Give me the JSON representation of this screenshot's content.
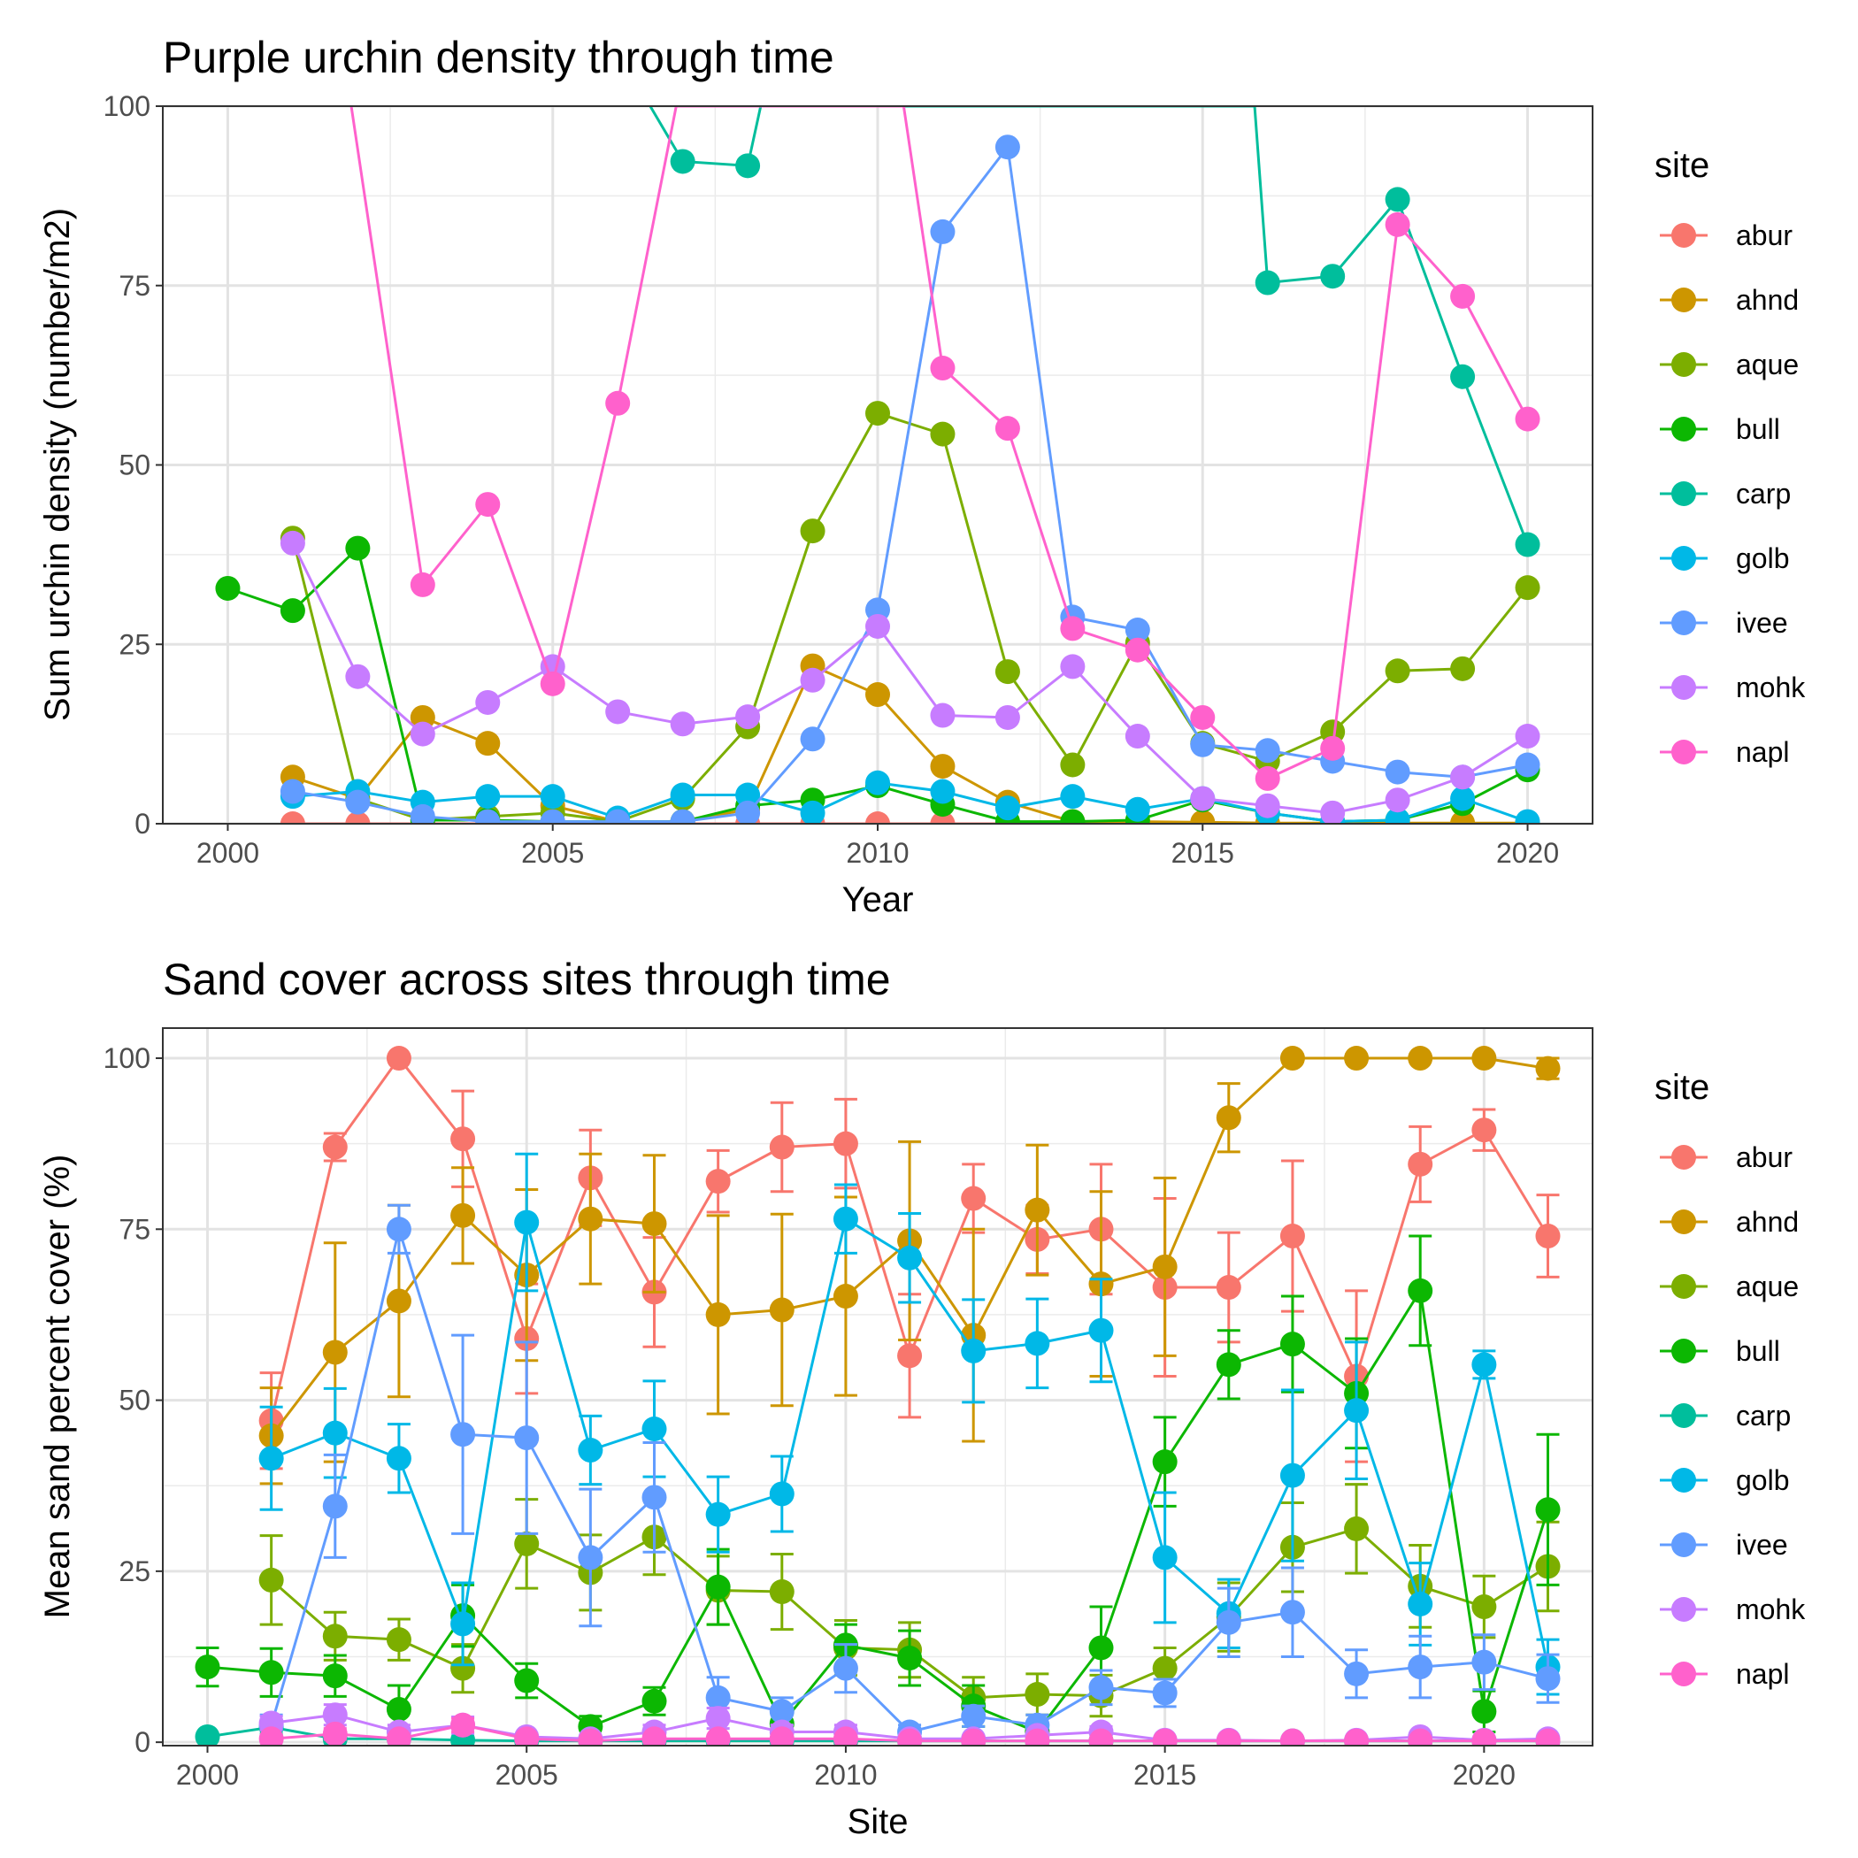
{
  "colors": {
    "abur": "#F8766D",
    "ahnd": "#CD9600",
    "aque": "#7CAE00",
    "bull": "#0CB702",
    "carp": "#00BE9C",
    "golb": "#00B8E7",
    "ivee": "#619CFF",
    "mohk": "#C77CFF",
    "napl": "#FF61CC"
  },
  "chart_data": [
    {
      "type": "line",
      "title": "Purple urchin density through time",
      "xlabel": "Year",
      "ylabel": "Sum urchin density (number/m2)",
      "xlim": [
        1999,
        2021
      ],
      "ylim": [
        0,
        100
      ],
      "x_ticks": [
        2000,
        2005,
        2010,
        2015,
        2020
      ],
      "y_ticks": [
        0,
        25,
        50,
        75,
        100
      ],
      "legend_title": "site",
      "legend": [
        "abur",
        "ahnd",
        "aque",
        "bull",
        "carp",
        "golb",
        "ivee",
        "mohk",
        "napl"
      ],
      "legend_position": "right",
      "grid": true,
      "series": [
        {
          "name": "abur",
          "x": [
            2001,
            2002,
            2003,
            2004,
            2005,
            2006,
            2007,
            2008,
            2009,
            2010,
            2011,
            2012,
            2013,
            2014,
            2015,
            2016,
            2017,
            2018,
            2019,
            2020
          ],
          "y": [
            0,
            0,
            0,
            0,
            0,
            0,
            0,
            0,
            0,
            0,
            0,
            0,
            0,
            0,
            0,
            0,
            0,
            0,
            0,
            0
          ]
        },
        {
          "name": "ahnd",
          "x": [
            2001,
            2002,
            2003,
            2004,
            2005,
            2006,
            2007,
            2008,
            2009,
            2010,
            2011,
            2012,
            2013,
            2014,
            2015,
            2016,
            2017,
            2018,
            2019,
            2020
          ],
          "y": [
            6.5,
            3.5,
            14.8,
            11.2,
            2.5,
            0.3,
            0.3,
            2,
            22,
            18,
            8,
            3,
            0.3,
            0.3,
            0.2,
            0.1,
            0.1,
            0.1,
            0.1,
            0.1
          ]
        },
        {
          "name": "aque",
          "x": [
            2001,
            2002,
            2003,
            2004,
            2005,
            2006,
            2007,
            2008,
            2009,
            2010,
            2011,
            2012,
            2013,
            2014,
            2015,
            2016,
            2017,
            2018,
            2019,
            2020
          ],
          "y": [
            39.8,
            3.5,
            0.5,
            1,
            1.5,
            0.3,
            3.5,
            13.5,
            40.8,
            57.2,
            54.3,
            21.2,
            8.2,
            25.2,
            11.2,
            8.7,
            12.8,
            21.3,
            21.6,
            32.9
          ]
        },
        {
          "name": "bull",
          "x": [
            2000,
            2001,
            2002,
            2003,
            2004,
            2005,
            2006,
            2007,
            2008,
            2009,
            2010,
            2011,
            2012,
            2013,
            2014,
            2015,
            2016,
            2017,
            2018,
            2019,
            2020
          ],
          "y": [
            32.8,
            29.7,
            38.4,
            0.5,
            0.5,
            0.3,
            0.3,
            0.3,
            2.5,
            3.3,
            5.3,
            2.7,
            0.3,
            0.3,
            0.5,
            3.3,
            1.5,
            0.3,
            0.5,
            2.8,
            7.5
          ]
        },
        {
          "name": "carp",
          "x": [
            2006.5,
            2007,
            2008,
            2008.2,
            2015.8,
            2016,
            2017,
            2018,
            2019,
            2020
          ],
          "y": [
            100,
            92.3,
            91.7,
            100,
            100,
            75.4,
            76.3,
            87,
            62.3,
            38.9
          ]
        },
        {
          "name": "golb",
          "x": [
            2001,
            2002,
            2003,
            2004,
            2005,
            2006,
            2007,
            2008,
            2009,
            2010,
            2011,
            2012,
            2013,
            2014,
            2015,
            2016,
            2017,
            2018,
            2019,
            2020
          ],
          "y": [
            3.8,
            4.5,
            3,
            3.8,
            3.8,
            0.8,
            4,
            4,
            1.5,
            5.7,
            4.5,
            2.2,
            3.8,
            2,
            3.5,
            1.5,
            0.3,
            0.5,
            3.5,
            0.3
          ]
        },
        {
          "name": "ivee",
          "x": [
            2001,
            2002,
            2003,
            2004,
            2005,
            2006,
            2007,
            2008,
            2009,
            2010,
            2011,
            2012,
            2013,
            2014,
            2015,
            2016,
            2017,
            2018,
            2019,
            2020
          ],
          "y": [
            4.5,
            3,
            1,
            0.3,
            0.3,
            0.3,
            0.3,
            1.5,
            11.8,
            29.8,
            82.5,
            94.3,
            28.8,
            27,
            11,
            10.2,
            8.7,
            7.2,
            6.5,
            8.2
          ]
        },
        {
          "name": "mohk",
          "x": [
            2001,
            2002,
            2003,
            2004,
            2005,
            2006,
            2007,
            2008,
            2009,
            2010,
            2011,
            2012,
            2013,
            2014,
            2015,
            2016,
            2017,
            2018,
            2019,
            2020
          ],
          "y": [
            39.1,
            20.5,
            12.5,
            16.9,
            21.9,
            15.6,
            13.9,
            14.9,
            20,
            27.5,
            15.1,
            14.8,
            21.9,
            12.2,
            3.5,
            2.5,
            1.5,
            3.3,
            6.5,
            12.2
          ]
        },
        {
          "name": "napl",
          "x": [
            2001.9,
            2003,
            2004,
            2005,
            2006,
            2006.9,
            2010.4,
            2011,
            2012,
            2013,
            2014,
            2015,
            2016,
            2017,
            2018,
            2019,
            2020
          ],
          "y": [
            100,
            33.3,
            44.5,
            19.5,
            58.6,
            100,
            100,
            63.5,
            55.1,
            27.2,
            24.2,
            14.8,
            6.3,
            10.5,
            83.5,
            73.5,
            56.4
          ]
        }
      ]
    },
    {
      "type": "line",
      "title": "Sand cover across sites through time",
      "xlabel": "Site",
      "ylabel": "Mean sand percent cover (%)",
      "xlim": [
        1999.3,
        2021.7
      ],
      "ylim": [
        0,
        100
      ],
      "x_ticks": [
        2000,
        2005,
        2010,
        2015,
        2020
      ],
      "y_ticks": [
        0,
        25,
        50,
        75,
        100
      ],
      "legend_title": "site",
      "legend": [
        "abur",
        "ahnd",
        "aque",
        "bull",
        "carp",
        "golb",
        "ivee",
        "mohk",
        "napl"
      ],
      "legend_position": "right",
      "grid": true,
      "error_bars": true,
      "series": [
        {
          "name": "abur",
          "x": [
            2001,
            2002,
            2003,
            2004,
            2005,
            2006,
            2007,
            2008,
            2009,
            2010,
            2011,
            2012,
            2013,
            2014,
            2015,
            2016,
            2017,
            2018,
            2019,
            2020,
            2021
          ],
          "y": [
            47,
            87,
            100,
            88.2,
            59,
            82.5,
            65.8,
            82,
            87,
            87.5,
            56.5,
            79.5,
            73.5,
            75,
            66.5,
            66.5,
            74,
            53.5,
            84.5,
            89.5,
            74
          ],
          "err": [
            7,
            2,
            0,
            7,
            8,
            7,
            8,
            4.5,
            6.5,
            6.5,
            9,
            5,
            5,
            9.5,
            13,
            8,
            11,
            12.5,
            5.5,
            3,
            6
          ]
        },
        {
          "name": "ahnd",
          "x": [
            2001,
            2002,
            2003,
            2004,
            2005,
            2006,
            2007,
            2008,
            2009,
            2010,
            2011,
            2012,
            2013,
            2014,
            2015,
            2016,
            2017,
            2018,
            2019,
            2020,
            2021
          ],
          "y": [
            44.8,
            57,
            64.5,
            77,
            68.3,
            76.5,
            75.8,
            62.5,
            63.2,
            65.2,
            73.3,
            59.5,
            77.8,
            67,
            69.5,
            91.3,
            100,
            100,
            100,
            100,
            98.5
          ],
          "err": [
            7,
            16,
            14,
            7,
            12.5,
            9.5,
            10,
            14.5,
            14,
            14.5,
            14.5,
            15.5,
            9.5,
            13.5,
            13,
            5,
            0,
            0,
            0,
            0,
            1.5
          ]
        },
        {
          "name": "aque",
          "x": [
            2001,
            2002,
            2003,
            2004,
            2005,
            2006,
            2007,
            2008,
            2009,
            2010,
            2011,
            2012,
            2013,
            2014,
            2015,
            2016,
            2017,
            2018,
            2019,
            2020,
            2021
          ],
          "y": [
            23.7,
            15.5,
            15,
            10.8,
            29,
            24.8,
            30,
            22.2,
            22,
            13.8,
            13.5,
            6.5,
            7,
            6.8,
            10.8,
            18.3,
            28.5,
            31.2,
            22.8,
            19.8,
            25.7
          ],
          "err": [
            6.5,
            3.5,
            3,
            3.5,
            6.5,
            5.5,
            5.5,
            5,
            5.5,
            4,
            4,
            3,
            3,
            3,
            3,
            5,
            6.5,
            6.5,
            6,
            4.5,
            6.5
          ]
        },
        {
          "name": "bull",
          "x": [
            2000,
            2001,
            2002,
            2003,
            2004,
            2005,
            2006,
            2007,
            2008,
            2009,
            2010,
            2011,
            2012,
            2013,
            2014,
            2015,
            2016,
            2017,
            2018,
            2019,
            2020,
            2021
          ],
          "y": [
            11,
            10.2,
            9.7,
            4.8,
            18.5,
            9,
            2.3,
            6,
            22.7,
            2.7,
            14.2,
            12.3,
            5.3,
            1.5,
            13.8,
            41,
            55.2,
            58.2,
            51,
            66,
            4.5,
            34
          ],
          "err": [
            2.8,
            3.5,
            3,
            3.5,
            4.5,
            2.5,
            1.5,
            2,
            5.5,
            1.5,
            3,
            4,
            3,
            1,
            6,
            6.5,
            5,
            7,
            8,
            8,
            3,
            11
          ]
        },
        {
          "name": "carp",
          "x": [
            2000,
            2001,
            2002,
            2003,
            2004,
            2005,
            2006,
            2007,
            2008,
            2009,
            2010,
            2011,
            2012,
            2013,
            2014,
            2015,
            2016,
            2017,
            2018,
            2019,
            2020,
            2021
          ],
          "y": [
            0.8,
            2.2,
            0.5,
            0.5,
            0.3,
            0.2,
            0.2,
            0.2,
            0.2,
            0.2,
            0.2,
            0.2,
            0.2,
            0.2,
            0.2,
            0.2,
            0.2,
            0.2,
            0.2,
            0.2,
            0.2,
            0.2
          ],
          "err": [
            0.5,
            1,
            0.5,
            0.5,
            0.3,
            0.2,
            0.2,
            0.2,
            0.2,
            0.2,
            0.2,
            0.2,
            0.2,
            0.2,
            0.2,
            0.2,
            0.2,
            0.2,
            0.2,
            0.2,
            0.2,
            0.2
          ]
        },
        {
          "name": "golb",
          "x": [
            2001,
            2002,
            2003,
            2004,
            2005,
            2006,
            2007,
            2008,
            2009,
            2010,
            2011,
            2012,
            2013,
            2014,
            2015,
            2016,
            2017,
            2018,
            2019,
            2020,
            2021
          ],
          "y": [
            41.5,
            45.2,
            41.5,
            17.3,
            76,
            42.7,
            45.8,
            33.3,
            36.3,
            76.5,
            70.8,
            57.2,
            58.3,
            60.2,
            27,
            18.8,
            39,
            48.5,
            20.2,
            55.2,
            11
          ],
          "err": [
            7.5,
            6.5,
            5,
            6,
            10,
            5,
            7,
            5.5,
            5.5,
            5,
            6.5,
            7.5,
            6.5,
            7.5,
            9.5,
            5,
            12.5,
            10,
            6,
            2,
            4
          ]
        },
        {
          "name": "ivee",
          "x": [
            2001,
            2002,
            2003,
            2004,
            2005,
            2006,
            2007,
            2008,
            2009,
            2010,
            2011,
            2012,
            2013,
            2014,
            2015,
            2016,
            2017,
            2018,
            2019,
            2020,
            2021
          ],
          "y": [
            2.5,
            34.5,
            75,
            45,
            44.5,
            27,
            35.8,
            6.5,
            4.5,
            10.8,
            1.5,
            3.8,
            2.5,
            8,
            7.2,
            17.5,
            19,
            10,
            11,
            11.7,
            9.3
          ],
          "err": [
            1.5,
            7.5,
            3.5,
            14.5,
            14,
            10,
            8,
            3,
            2,
            3.5,
            1,
            1.5,
            1.5,
            2.5,
            2,
            5,
            6.5,
            3.5,
            4.5,
            4,
            3.5
          ]
        },
        {
          "name": "mohk",
          "x": [
            2001,
            2002,
            2003,
            2004,
            2005,
            2006,
            2007,
            2008,
            2009,
            2010,
            2011,
            2012,
            2013,
            2014,
            2015,
            2016,
            2017,
            2018,
            2019,
            2020,
            2021
          ],
          "y": [
            2.8,
            4,
            1.5,
            2.5,
            0.8,
            0.5,
            1.5,
            3.5,
            1.5,
            1.5,
            0.5,
            0.5,
            1,
            1.5,
            0.3,
            0.3,
            0.2,
            0.3,
            0.8,
            0.3,
            0.5
          ],
          "err": [
            1,
            1.5,
            1,
            1.2,
            0.5,
            0.3,
            1,
            1.5,
            1,
            1,
            0.3,
            0.3,
            0.5,
            0.8,
            0.2,
            0.2,
            0.1,
            0.2,
            0.5,
            0.2,
            0.3
          ]
        },
        {
          "name": "napl",
          "x": [
            2001,
            2002,
            2003,
            2004,
            2005,
            2006,
            2007,
            2008,
            2009,
            2010,
            2011,
            2012,
            2013,
            2014,
            2015,
            2016,
            2017,
            2018,
            2019,
            2020,
            2021
          ],
          "y": [
            0.5,
            1.2,
            0.5,
            2.5,
            0.5,
            0.2,
            0.5,
            0.5,
            0.5,
            0.5,
            0.2,
            0.2,
            0.2,
            0.2,
            0.2,
            0.2,
            0.2,
            0.2,
            0.2,
            0.2,
            0.2
          ],
          "err": [
            0.3,
            0.8,
            0.3,
            1,
            0.3,
            0.1,
            0.3,
            0.3,
            0.3,
            0.3,
            0.1,
            0.1,
            0.1,
            0.1,
            0.1,
            0.1,
            0.1,
            0.1,
            0.1,
            0.1,
            0.1
          ]
        }
      ]
    }
  ]
}
